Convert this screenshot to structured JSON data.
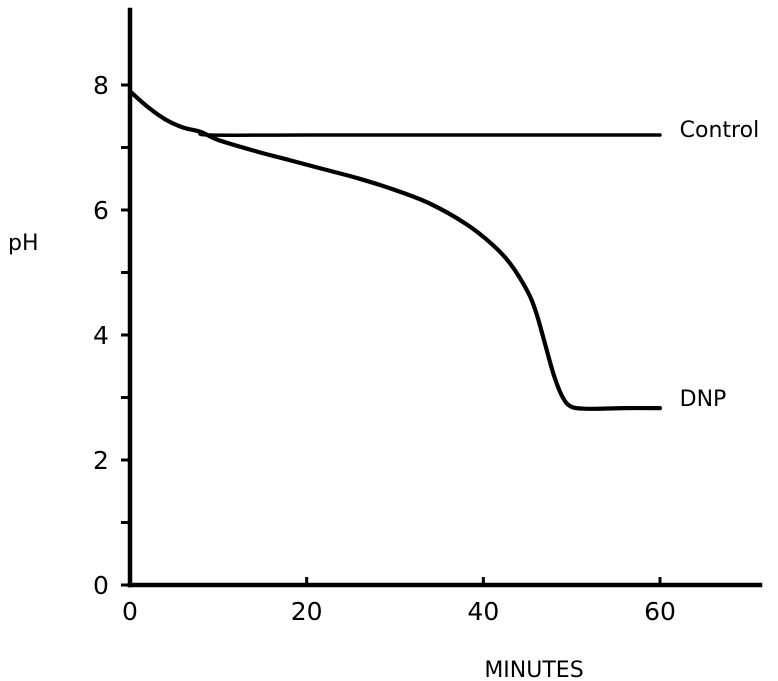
{
  "chart_data": {
    "type": "line",
    "title": "",
    "xlabel": "MINUTES",
    "ylabel": "pH",
    "xlim": [
      0,
      70
    ],
    "ylim": [
      0,
      9.4
    ],
    "x_ticks": [
      0,
      20,
      40,
      60
    ],
    "x_tick_labels": [
      "0",
      "20",
      "40",
      "60"
    ],
    "y_ticks": [
      0,
      1,
      2,
      3,
      4,
      5,
      6,
      7,
      8
    ],
    "y_tick_labels": [
      "0",
      "",
      "2",
      "",
      "4",
      "",
      "6",
      "",
      "8"
    ],
    "grid": false,
    "legend": "none",
    "series": [
      {
        "name": "Control",
        "label_at": [
          62,
          7.2
        ],
        "points": [
          [
            0,
            7.9
          ],
          [
            2,
            7.65
          ],
          [
            4,
            7.45
          ],
          [
            6,
            7.32
          ],
          [
            8,
            7.25
          ],
          [
            9,
            7.2
          ],
          [
            20,
            7.2
          ],
          [
            30,
            7.2
          ],
          [
            40,
            7.2
          ],
          [
            50,
            7.2
          ],
          [
            60,
            7.2
          ]
        ]
      },
      {
        "name": "DNP",
        "label_at": [
          62,
          2.9
        ],
        "points": [
          [
            0,
            7.9
          ],
          [
            2,
            7.65
          ],
          [
            4,
            7.45
          ],
          [
            6,
            7.32
          ],
          [
            8,
            7.25
          ],
          [
            10,
            7.12
          ],
          [
            14,
            6.95
          ],
          [
            18,
            6.8
          ],
          [
            22,
            6.65
          ],
          [
            26,
            6.5
          ],
          [
            30,
            6.32
          ],
          [
            34,
            6.1
          ],
          [
            38,
            5.78
          ],
          [
            41,
            5.45
          ],
          [
            43,
            5.15
          ],
          [
            45,
            4.7
          ],
          [
            46,
            4.35
          ],
          [
            47,
            3.85
          ],
          [
            48,
            3.35
          ],
          [
            49,
            3.0
          ],
          [
            50,
            2.85
          ],
          [
            52,
            2.82
          ],
          [
            56,
            2.83
          ],
          [
            60,
            2.83
          ]
        ]
      }
    ]
  }
}
